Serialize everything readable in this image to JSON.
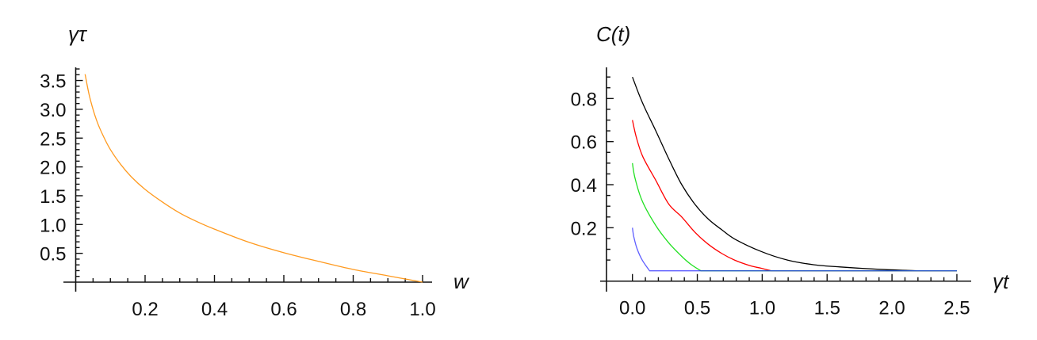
{
  "chart_data": [
    {
      "type": "line",
      "xlabel": "w",
      "ylabel": "γτ",
      "xlim": [
        -0.03,
        1.03
      ],
      "ylim": [
        -0.1,
        3.73
      ],
      "x_ticks": [
        "0.2",
        "0.4",
        "0.6",
        "0.8",
        "1.0"
      ],
      "y_ticks": [
        "0.5",
        "1.0",
        "1.5",
        "2.0",
        "2.5",
        "3.0",
        "3.5"
      ],
      "grid": false,
      "series": [
        {
          "color": "#FF9A1F",
          "points": [
            [
              0.027,
              3.61
            ],
            [
              0.04,
              3.22
            ],
            [
              0.06,
              2.81
            ],
            [
              0.08,
              2.53
            ],
            [
              0.1,
              2.3
            ],
            [
              0.13,
              2.04
            ],
            [
              0.16,
              1.83
            ],
            [
              0.2,
              1.61
            ],
            [
              0.25,
              1.39
            ],
            [
              0.3,
              1.2
            ],
            [
              0.35,
              1.05
            ],
            [
              0.4,
              0.92
            ],
            [
              0.5,
              0.69
            ],
            [
              0.6,
              0.51
            ],
            [
              0.7,
              0.36
            ],
            [
              0.8,
              0.22
            ],
            [
              0.9,
              0.11
            ],
            [
              1.0,
              0.0
            ]
          ]
        }
      ]
    },
    {
      "type": "line",
      "xlabel": "γt",
      "ylabel": "C(t)",
      "xlim": [
        -0.25,
        2.6
      ],
      "ylim": [
        -0.1,
        0.946
      ],
      "x_ticks": [
        "0.0",
        "0.5",
        "1.0",
        "1.5",
        "2.0",
        "2.5"
      ],
      "y_ticks": [
        "0.2",
        "0.4",
        "0.6",
        "0.8"
      ],
      "grid": false,
      "series": [
        {
          "color": "#000000",
          "points": [
            [
              0,
              0.9
            ],
            [
              0.05,
              0.82
            ],
            [
              0.1,
              0.75
            ],
            [
              0.18,
              0.65
            ],
            [
              0.28,
              0.52
            ],
            [
              0.38,
              0.4
            ],
            [
              0.48,
              0.31
            ],
            [
              0.585,
              0.24
            ],
            [
              0.69,
              0.19
            ],
            [
              0.79,
              0.147
            ],
            [
              0.99,
              0.09
            ],
            [
              1.2,
              0.049
            ],
            [
              1.4,
              0.028
            ],
            [
              1.6,
              0.018
            ],
            [
              1.9,
              0.007
            ],
            [
              2.2,
              0.0
            ],
            [
              2.5,
              0.0
            ]
          ]
        },
        {
          "color": "#FF0000",
          "points": [
            [
              0,
              0.7
            ],
            [
              0.03,
              0.62
            ],
            [
              0.08,
              0.53
            ],
            [
              0.18,
              0.42
            ],
            [
              0.28,
              0.31
            ],
            [
              0.38,
              0.25
            ],
            [
              0.48,
              0.18
            ],
            [
              0.585,
              0.123
            ],
            [
              0.69,
              0.08
            ],
            [
              0.79,
              0.049
            ],
            [
              0.9,
              0.025
            ],
            [
              0.99,
              0.012
            ],
            [
              1.07,
              0.0
            ],
            [
              2.5,
              0.0
            ]
          ]
        },
        {
          "color": "#22E022",
          "points": [
            [
              0,
              0.5
            ],
            [
              0.02,
              0.43
            ],
            [
              0.075,
              0.325
            ],
            [
              0.18,
              0.21
            ],
            [
              0.28,
              0.13
            ],
            [
              0.38,
              0.067
            ],
            [
              0.45,
              0.03
            ],
            [
              0.527,
              0.0
            ],
            [
              2.5,
              0.0
            ]
          ]
        },
        {
          "color": "#2A2AFF",
          "points": [
            [
              0,
              0.2
            ],
            [
              0.01,
              0.16
            ],
            [
              0.035,
              0.104
            ],
            [
              0.075,
              0.05
            ],
            [
              0.132,
              0.0
            ],
            [
              2.5,
              0.0
            ]
          ]
        }
      ]
    }
  ]
}
